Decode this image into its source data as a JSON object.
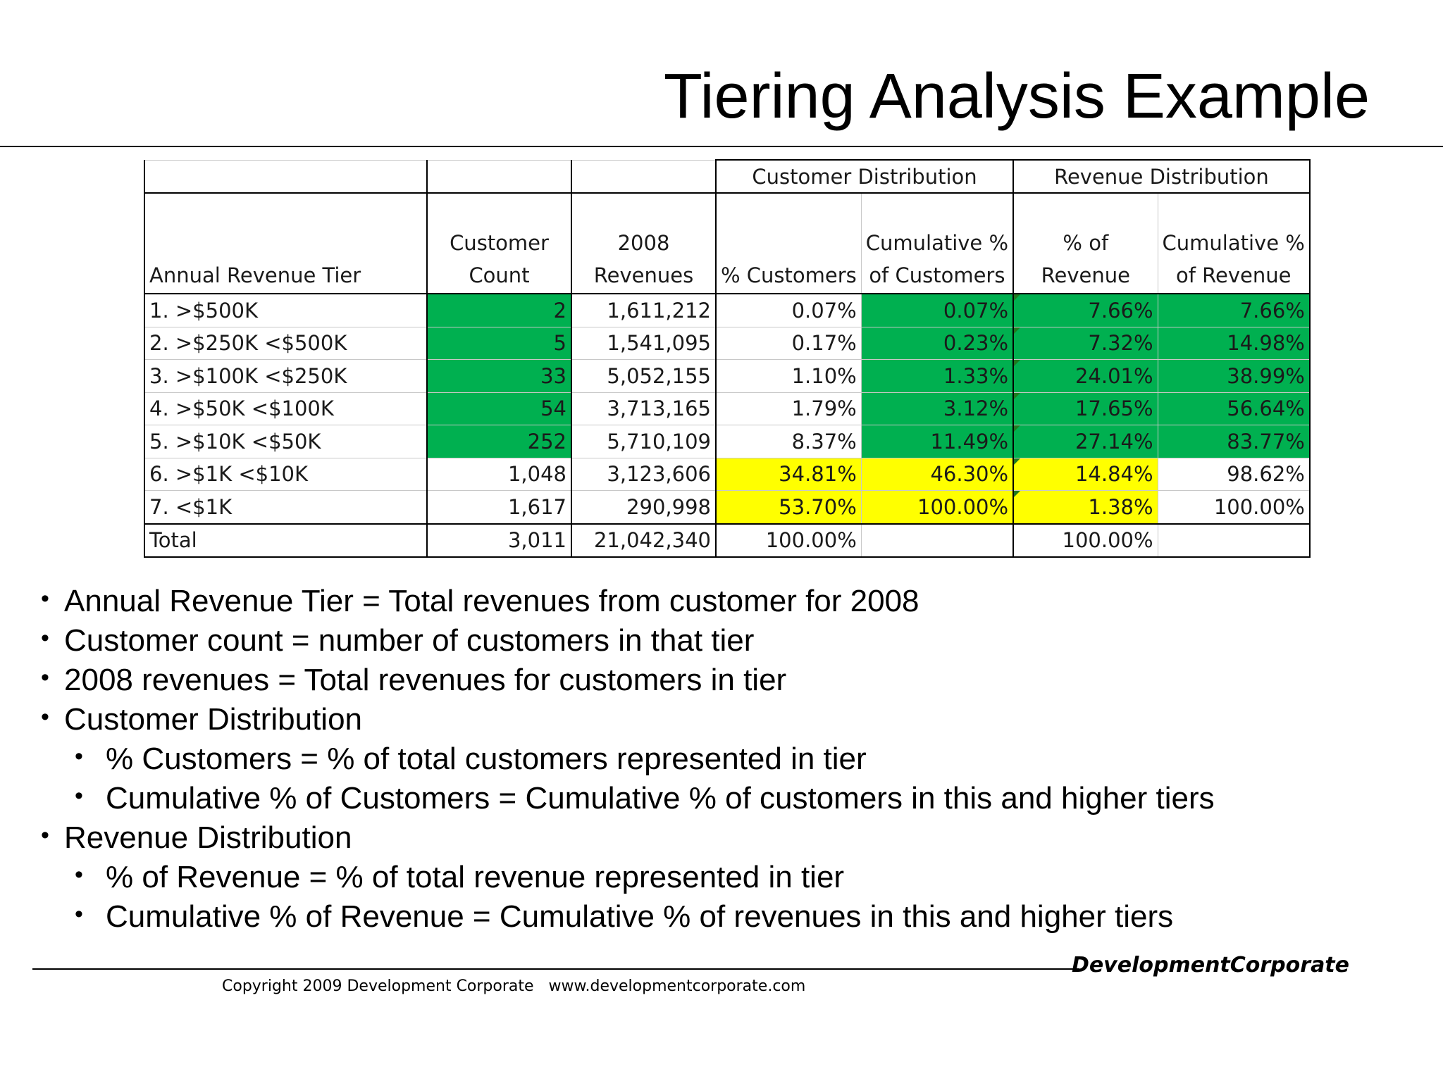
{
  "title": "Tiering Analysis Example",
  "table": {
    "group_headers": {
      "customer_distribution": "Customer Distribution",
      "revenue_distribution": "Revenue Distribution"
    },
    "columns": [
      [
        "Annual Revenue Tier"
      ],
      [
        "Customer",
        "Count"
      ],
      [
        "2008",
        "Revenues"
      ],
      [
        "% Customers"
      ],
      [
        "Cumulative %",
        "of Customers"
      ],
      [
        "% of",
        "Revenue"
      ],
      [
        "Cumulative %",
        "of Revenue"
      ]
    ],
    "rows": [
      [
        "1. >$500K",
        "2",
        "1,611,212",
        "0.07%",
        "0.07%",
        "7.66%",
        "7.66%"
      ],
      [
        "2. >$250K <$500K",
        "5",
        "1,541,095",
        "0.17%",
        "0.23%",
        "7.32%",
        "14.98%"
      ],
      [
        "3. >$100K <$250K",
        "33",
        "5,052,155",
        "1.10%",
        "1.33%",
        "24.01%",
        "38.99%"
      ],
      [
        "4. >$50K <$100K",
        "54",
        "3,713,165",
        "1.79%",
        "3.12%",
        "17.65%",
        "56.64%"
      ],
      [
        "5. >$10K <$50K",
        "252",
        "5,710,109",
        "8.37%",
        "11.49%",
        "27.14%",
        "83.77%"
      ],
      [
        "6. >$1K <$10K",
        "1,048",
        "3,123,606",
        "34.81%",
        "46.30%",
        "14.84%",
        "98.62%"
      ],
      [
        "7. <$1K",
        "1,617",
        "290,998",
        "53.70%",
        "100.00%",
        "1.38%",
        "100.00%"
      ]
    ],
    "total": [
      "Total",
      "3,011",
      "21,042,340",
      "100.00%",
      "",
      "100.00%",
      ""
    ],
    "highlight_colors": {
      "green": "#00b050",
      "yellow": "#ffff00"
    }
  },
  "notes": [
    {
      "level": 1,
      "text": "Annual Revenue Tier = Total revenues from customer for 2008"
    },
    {
      "level": 1,
      "text": "Customer count = number of customers in that tier"
    },
    {
      "level": 1,
      "text": "2008 revenues = Total revenues for customers in tier"
    },
    {
      "level": 1,
      "text": "Customer Distribution"
    },
    {
      "level": 2,
      "text": "% Customers = % of total customers represented in tier"
    },
    {
      "level": 2,
      "text": "Cumulative % of Customers = Cumulative % of customers in this and higher tiers"
    },
    {
      "level": 1,
      "text": "Revenue Distribution"
    },
    {
      "level": 2,
      "text": "% of Revenue = % of total revenue represented in tier"
    },
    {
      "level": 2,
      "text": "Cumulative % of Revenue = Cumulative % of revenues in this and higher tiers"
    }
  ],
  "footer": {
    "brand": "DevelopmentCorporate",
    "copyright": "Copyright 2009 Development Corporate",
    "url": "www.developmentcorporate.com"
  }
}
